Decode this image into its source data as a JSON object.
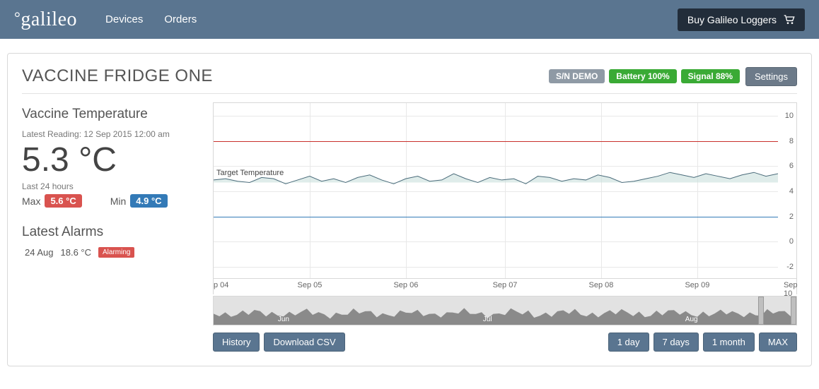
{
  "header": {
    "brand": "galileo",
    "nav": [
      "Devices",
      "Orders"
    ],
    "buy_label": "Buy Galileo Loggers"
  },
  "panel": {
    "title": "VACCINE FRIDGE ONE",
    "badges": {
      "serial": "S/N DEMO",
      "battery": "Battery 100%",
      "signal": "Signal 88%"
    },
    "settings_label": "Settings"
  },
  "sidebar": {
    "section1_title": "Vaccine Temperature",
    "latest_label": "Latest Reading: 12 Sep 2015 12:00 am",
    "reading": "5.3 °C",
    "last24_label": "Last 24 hours",
    "max_label": "Max",
    "max_value": "5.6 °C",
    "min_label": "Min",
    "min_value": "4.9 °C",
    "alarms_title": "Latest Alarms",
    "alarm_date": "24 Aug",
    "alarm_temp": "18.6 °C",
    "alarm_badge": "Alarming"
  },
  "chart": {
    "type": "line",
    "y_ticks": [
      -2,
      0,
      2,
      4,
      6,
      8,
      10
    ],
    "ylim": [
      -3,
      11
    ],
    "upper_threshold": 8,
    "lower_threshold": 2,
    "target_label": "Target Temperature",
    "target_value": 5,
    "x_labels": [
      "p 04",
      "Sep 05",
      "Sep 06",
      "Sep 07",
      "Sep 08",
      "Sep 09",
      "Sep 10"
    ],
    "x_positions_pct": [
      0,
      16.5,
      33,
      50,
      66.5,
      83,
      99
    ],
    "series_color": "#4a6b7a",
    "series_fill": "#c9e0dc",
    "threshold_red_color": "#c9302c",
    "threshold_blue_color": "#337ab7",
    "grid_color": "#e8e8e8",
    "background_color": "#ffffff",
    "series_values": [
      4.9,
      5.0,
      4.8,
      4.7,
      5.1,
      5.0,
      4.6,
      4.9,
      5.2,
      4.8,
      5.0,
      4.7,
      5.1,
      5.3,
      4.9,
      4.6,
      5.0,
      5.2,
      4.8,
      4.9,
      5.4,
      5.0,
      4.7,
      5.1,
      4.9,
      5.0,
      4.6,
      5.2,
      5.1,
      4.8,
      5.0,
      4.9,
      5.3,
      5.1,
      4.7,
      4.8,
      5.0,
      5.2,
      5.5,
      5.3,
      5.1,
      5.4,
      5.2,
      5.0,
      5.3,
      5.5,
      5.2,
      5.4
    ]
  },
  "scrubber": {
    "labels": [
      "Jun",
      "Jul",
      "Aug"
    ],
    "label_positions_pct": [
      12,
      47,
      82
    ]
  },
  "buttons": {
    "history": "History",
    "download": "Download CSV",
    "ranges": [
      "1 day",
      "7 days",
      "1 month",
      "MAX"
    ]
  },
  "colors": {
    "topbar_bg": "#5a7590",
    "buy_btn_bg": "#222d3a",
    "badge_gray": "#8f9aa5",
    "badge_green": "#3aaa35",
    "settings_bg": "#6c7a89",
    "pill_red": "#d9534f",
    "pill_blue": "#337ab7",
    "btn_bg": "#5a7590"
  }
}
